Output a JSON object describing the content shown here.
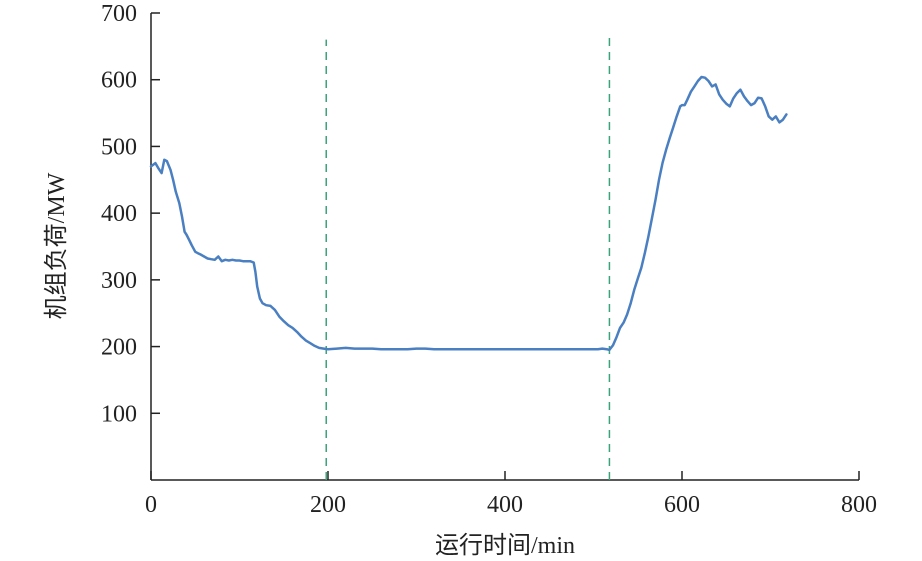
{
  "chart_data": {
    "type": "line",
    "xlabel": "运行时间/min",
    "ylabel": "机组负荷/MW",
    "xlim": [
      0,
      800
    ],
    "ylim": [
      0,
      700
    ],
    "x_ticks": [
      0,
      200,
      400,
      600,
      800
    ],
    "x_tick_labels": [
      "0",
      "200",
      "400",
      "600",
      "800"
    ],
    "y_ticks": [
      100,
      200,
      300,
      400,
      500,
      600,
      700
    ],
    "y_tick_labels": [
      "100",
      "200",
      "300",
      "400",
      "500",
      "600",
      "700"
    ],
    "grid": false,
    "vertical_reference_lines": [
      {
        "x": 198,
        "y_top": 660,
        "color": "#3aa37a",
        "style": "dashed"
      },
      {
        "x": 518,
        "y_top": 668,
        "color": "#3aa37a",
        "style": "dashed"
      }
    ],
    "series": [
      {
        "color": "#4a7fc1",
        "x": [
          0,
          5,
          8,
          12,
          15,
          18,
          22,
          25,
          28,
          32,
          35,
          38,
          40,
          43,
          46,
          50,
          53,
          56,
          60,
          64,
          68,
          72,
          76,
          80,
          84,
          88,
          92,
          96,
          100,
          104,
          108,
          112,
          116,
          118,
          120,
          123,
          126,
          130,
          135,
          140,
          145,
          150,
          155,
          160,
          165,
          170,
          175,
          180,
          185,
          190,
          195,
          200,
          210,
          220,
          230,
          240,
          250,
          260,
          270,
          280,
          290,
          300,
          310,
          320,
          330,
          340,
          350,
          360,
          370,
          380,
          390,
          400,
          410,
          420,
          430,
          440,
          450,
          460,
          470,
          480,
          490,
          500,
          505,
          510,
          515,
          518,
          522,
          526,
          530,
          534,
          538,
          542,
          546,
          550,
          554,
          558,
          562,
          566,
          570,
          574,
          578,
          582,
          586,
          590,
          594,
          598,
          600,
          603,
          606,
          610,
          614,
          618,
          622,
          626,
          630,
          634,
          638,
          642,
          646,
          650,
          654,
          658,
          662,
          666,
          670,
          674,
          678,
          682,
          686,
          690,
          694,
          698,
          702,
          706,
          710,
          714,
          718
        ],
        "values": [
          470,
          475,
          468,
          460,
          480,
          478,
          465,
          450,
          432,
          415,
          395,
          372,
          368,
          360,
          352,
          342,
          340,
          338,
          335,
          332,
          331,
          330,
          335,
          328,
          330,
          329,
          330,
          329,
          329,
          328,
          328,
          328,
          326,
          312,
          290,
          272,
          265,
          262,
          261,
          255,
          245,
          238,
          232,
          228,
          222,
          215,
          209,
          205,
          201,
          198,
          197,
          196,
          197,
          198,
          197,
          197,
          197,
          196,
          196,
          196,
          196,
          197,
          197,
          196,
          196,
          196,
          196,
          196,
          196,
          196,
          196,
          196,
          196,
          196,
          196,
          196,
          196,
          196,
          196,
          196,
          196,
          196,
          196,
          197,
          196,
          195,
          202,
          214,
          228,
          236,
          248,
          265,
          285,
          302,
          318,
          340,
          365,
          392,
          420,
          450,
          475,
          495,
          512,
          528,
          545,
          560,
          562,
          562,
          570,
          582,
          590,
          598,
          604,
          603,
          598,
          590,
          593,
          578,
          570,
          564,
          560,
          572,
          580,
          585,
          575,
          568,
          562,
          565,
          573,
          572,
          560,
          545,
          540,
          545,
          536,
          540,
          548
        ]
      }
    ]
  }
}
